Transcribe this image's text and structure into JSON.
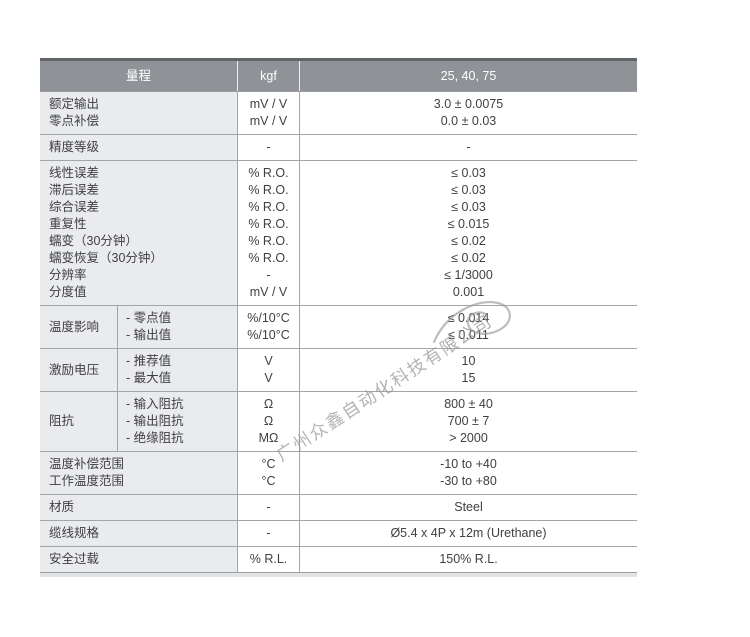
{
  "watermark": {
    "text": "广州众鑫自动化科技有限公司"
  },
  "colors": {
    "header_bg": "#8f9296",
    "header_top_border": "#636467",
    "label_cell_bg": "#eaebed",
    "grid_line": "#a3a5a8",
    "bottom_strip": "#e2e3e5",
    "watermark_gray": "#96969a"
  },
  "table": {
    "header": {
      "col_label": "量程",
      "col_unit": "kgf",
      "col_value": "25, 40, 75"
    },
    "groups": [
      {
        "rows": [
          {
            "label": "额定输出",
            "unit": "mV / V",
            "value": "3.0 ± 0.0075"
          },
          {
            "label": "零点补偿",
            "unit": "mV / V",
            "value": "0.0 ± 0.03"
          }
        ]
      },
      {
        "rows": [
          {
            "label": "精度等级",
            "unit": "-",
            "value": "-"
          }
        ]
      },
      {
        "rows": [
          {
            "label": "线性误差",
            "unit": "% R.O.",
            "value": "≤ 0.03"
          },
          {
            "label": "滞后误差",
            "unit": "% R.O.",
            "value": "≤ 0.03"
          },
          {
            "label": "综合误差",
            "unit": "% R.O.",
            "value": "≤ 0.03"
          },
          {
            "label": "重复性",
            "unit": "% R.O.",
            "value": "≤ 0.015"
          },
          {
            "label": "蠕变（30分钟）",
            "unit": "% R.O.",
            "value": "≤ 0.02"
          },
          {
            "label": "蠕变恢复（30分钟）",
            "unit": "% R.O.",
            "value": "≤ 0.02"
          },
          {
            "label": "分辨率",
            "unit": "-",
            "value": "≤ 1/3000"
          },
          {
            "label": "分度值",
            "unit": "mV / V",
            "value": "0.001"
          }
        ]
      },
      {
        "label": "温度影响",
        "rows": [
          {
            "label": "- 零点值",
            "unit": "%/10°C",
            "value": "≤ 0.014"
          },
          {
            "label": "- 输出值",
            "unit": "%/10°C",
            "value": "≤ 0.011"
          }
        ]
      },
      {
        "label": "激励电压",
        "rows": [
          {
            "label": "- 推荐值",
            "unit": "V",
            "value": "10"
          },
          {
            "label": "- 最大值",
            "unit": "V",
            "value": "15"
          }
        ]
      },
      {
        "label": "阻抗",
        "rows": [
          {
            "label": "- 输入阻抗",
            "unit": "Ω",
            "value": "800 ± 40"
          },
          {
            "label": "- 输出阻抗",
            "unit": "Ω",
            "value": "700 ± 7"
          },
          {
            "label": "- 绝缘阻抗",
            "unit": "MΩ",
            "value": "> 2000"
          }
        ]
      },
      {
        "rows": [
          {
            "label": "温度补偿范围",
            "unit": "°C",
            "value": "-10 to +40"
          },
          {
            "label": "工作温度范围",
            "unit": "°C",
            "value": "-30 to +80"
          }
        ]
      },
      {
        "rows": [
          {
            "label": "材质",
            "unit": "-",
            "value": "Steel"
          }
        ]
      },
      {
        "rows": [
          {
            "label": "缆线规格",
            "unit": "-",
            "value": "Ø5.4 x 4P x 12m (Urethane)"
          }
        ]
      },
      {
        "rows": [
          {
            "label": "安全过载",
            "unit": "% R.L.",
            "value": "150% R.L."
          }
        ]
      }
    ]
  }
}
